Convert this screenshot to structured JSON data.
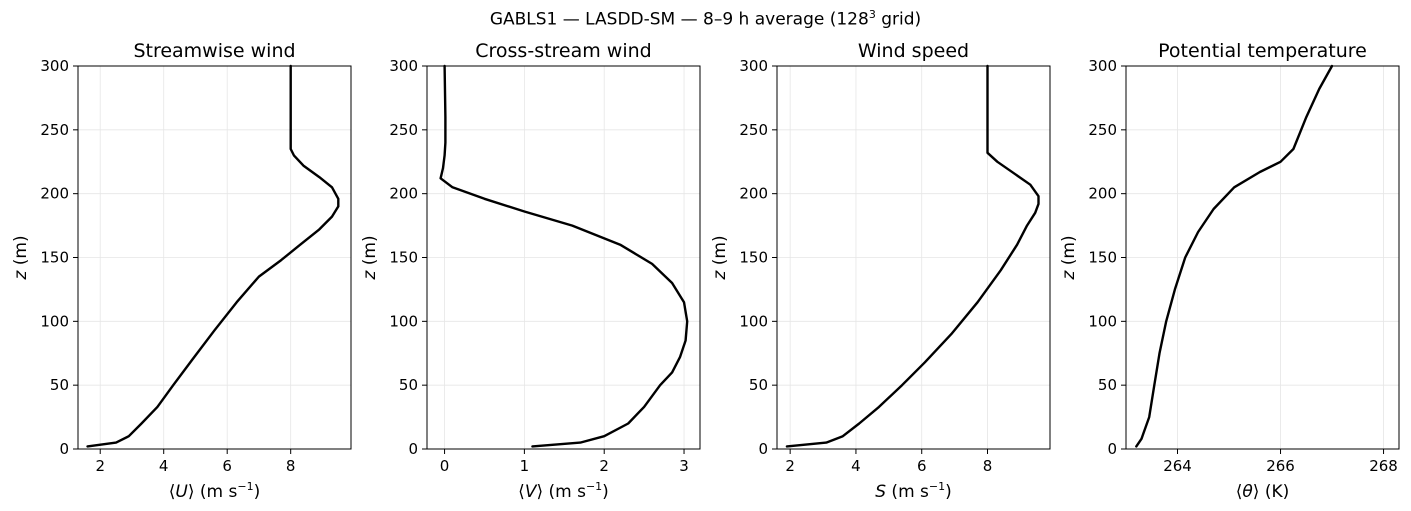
{
  "figure": {
    "suptitle_pre": "GABLS1 — LASDD-SM — 8–9 h average (128",
    "suptitle_sup": "3",
    "suptitle_post": " grid)"
  },
  "chart_data": [
    {
      "type": "line",
      "title": "Streamwise wind",
      "xlabel": {
        "pre": "⟨",
        "var": "U",
        "post": "⟩ (m s",
        "sup": "−1",
        "end": ")"
      },
      "ylabel": {
        "var": "z",
        "post": " (m)"
      },
      "xlim": [
        1.3,
        9.9
      ],
      "ylim": [
        0,
        300
      ],
      "xticks": [
        2,
        4,
        6,
        8
      ],
      "yticks": [
        0,
        50,
        100,
        150,
        200,
        250,
        300
      ],
      "grid": true,
      "line_color": "#000000",
      "series": [
        {
          "x": [
            1.6,
            2.5,
            2.9,
            3.3,
            3.8,
            4.3,
            4.9,
            5.6,
            6.3,
            7.0,
            7.7,
            8.3,
            8.9,
            9.3,
            9.5,
            9.5,
            9.3,
            8.9,
            8.4,
            8.1,
            8.0,
            8.0,
            8.0
          ],
          "y": [
            2,
            5,
            10,
            20,
            33,
            50,
            70,
            93,
            115,
            135,
            148,
            160,
            172,
            182,
            190,
            196,
            205,
            213,
            222,
            230,
            235,
            250,
            300
          ]
        }
      ]
    },
    {
      "type": "line",
      "title": "Cross-stream wind",
      "xlabel": {
        "pre": "⟨",
        "var": "V",
        "post": "⟩ (m s",
        "sup": "−1",
        "end": ")"
      },
      "ylabel": {
        "var": "z",
        "post": " (m)"
      },
      "xlim": [
        -0.22,
        3.2
      ],
      "ylim": [
        0,
        300
      ],
      "xticks": [
        0,
        1,
        2,
        3
      ],
      "yticks": [
        0,
        50,
        100,
        150,
        200,
        250,
        300
      ],
      "grid": true,
      "line_color": "#000000",
      "series": [
        {
          "x": [
            1.1,
            1.7,
            2.0,
            2.3,
            2.5,
            2.7,
            2.85,
            2.95,
            3.02,
            3.04,
            3.0,
            2.85,
            2.6,
            2.2,
            1.6,
            1.0,
            0.5,
            0.1,
            -0.05,
            -0.02,
            0.0,
            0.01,
            0.01,
            0.0
          ],
          "y": [
            2,
            5,
            10,
            20,
            33,
            50,
            60,
            72,
            85,
            100,
            115,
            130,
            145,
            160,
            175,
            186,
            196,
            205,
            212,
            220,
            230,
            240,
            260,
            300
          ]
        }
      ]
    },
    {
      "type": "line",
      "title": "Wind speed",
      "xlabel": {
        "pre": "",
        "var": "S",
        "post": " (m s",
        "sup": "−1",
        "end": ")"
      },
      "ylabel": {
        "var": "z",
        "post": " (m)"
      },
      "xlim": [
        1.6,
        9.9
      ],
      "ylim": [
        0,
        300
      ],
      "xticks": [
        2,
        4,
        6,
        8
      ],
      "yticks": [
        0,
        50,
        100,
        150,
        200,
        250,
        300
      ],
      "grid": true,
      "line_color": "#000000",
      "series": [
        {
          "x": [
            1.9,
            3.1,
            3.6,
            4.1,
            4.7,
            5.4,
            6.1,
            6.9,
            7.7,
            8.4,
            8.9,
            9.2,
            9.45,
            9.55,
            9.55,
            9.3,
            8.8,
            8.3,
            8.0,
            8.0,
            8.0
          ],
          "y": [
            2,
            5,
            10,
            20,
            33,
            50,
            68,
            90,
            115,
            140,
            160,
            175,
            185,
            192,
            198,
            207,
            216,
            225,
            232,
            250,
            300
          ]
        }
      ]
    },
    {
      "type": "line",
      "title": "Potential temperature",
      "xlabel": {
        "pre": "⟨",
        "var": "θ",
        "post": "⟩ (K)",
        "sup": "",
        "end": ""
      },
      "ylabel": {
        "var": "z",
        "post": " (m)"
      },
      "xlim": [
        263.0,
        268.3
      ],
      "ylim": [
        0,
        300
      ],
      "xticks": [
        264,
        266,
        268
      ],
      "yticks": [
        0,
        50,
        100,
        150,
        200,
        250,
        300
      ],
      "grid": true,
      "line_color": "#000000",
      "series": [
        {
          "x": [
            263.2,
            263.3,
            263.45,
            263.55,
            263.65,
            263.78,
            263.95,
            264.15,
            264.4,
            264.7,
            265.1,
            265.6,
            266.0,
            266.25,
            266.5,
            266.75,
            267.0
          ],
          "y": [
            2,
            8,
            25,
            50,
            75,
            100,
            125,
            150,
            170,
            188,
            205,
            217,
            225,
            235,
            260,
            282,
            300
          ]
        }
      ]
    }
  ]
}
